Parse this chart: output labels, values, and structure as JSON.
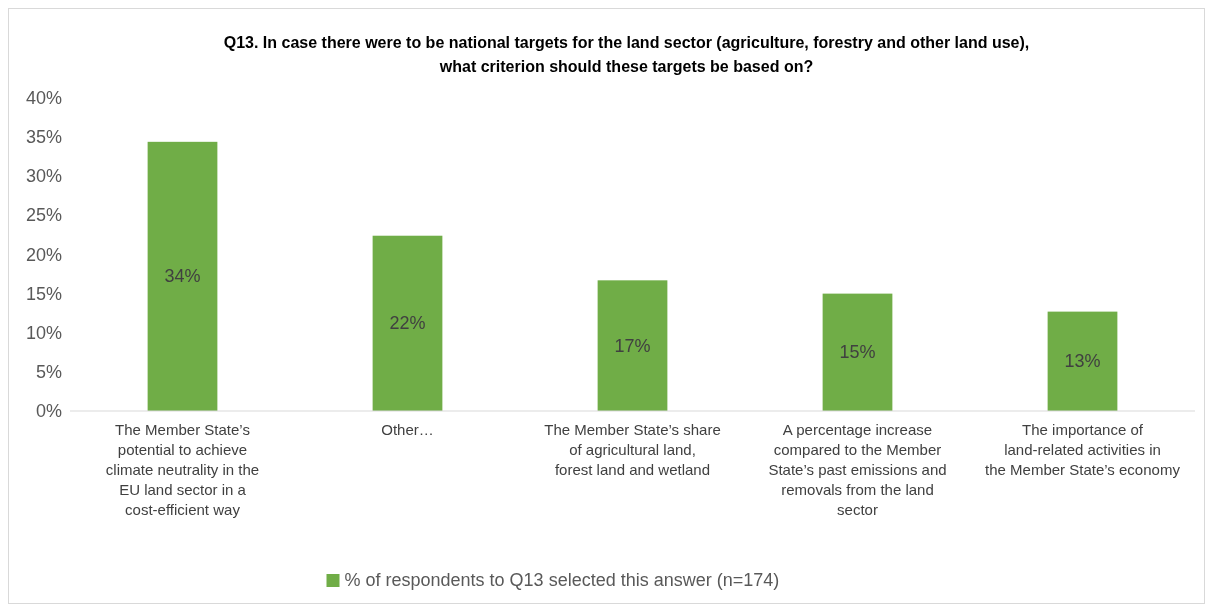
{
  "chart_data": {
    "type": "bar",
    "title": "Q13. In case there were to be national targets for the land sector (agriculture, forestry and other land use),\nwhat criterion should these targets be based on?",
    "categories": [
      "The Member State’s potential to achieve climate neutrality in the EU land sector in a cost-efficient way",
      "Other…",
      "The Member State’s share of agricultural land, forest land and wetland",
      "A percentage increase compared to the Member State’s past emissions and removals from the land sector",
      "The importance of land-related activities in the Member State’s economy"
    ],
    "series": [
      {
        "name": "% of respondents to Q13 selected this answer (n=174)",
        "color": "#70ad47",
        "values": [
          34.4,
          22.4,
          16.7,
          15,
          12.7
        ],
        "value_labels": [
          "34%",
          "22%",
          "17%",
          "15%",
          "13%"
        ]
      }
    ],
    "ylim": [
      0,
      40
    ],
    "yticks": [
      {
        "value": 0,
        "label": "0%"
      },
      {
        "value": 5,
        "label": "5%"
      },
      {
        "value": 10,
        "label": "10%"
      },
      {
        "value": 15,
        "label": "15%"
      },
      {
        "value": 20,
        "label": "20%"
      },
      {
        "value": 25,
        "label": "25%"
      },
      {
        "value": 30,
        "label": "30%"
      },
      {
        "value": 35,
        "label": "35%"
      },
      {
        "value": 40,
        "label": "40%"
      }
    ],
    "grid": false,
    "legend": "bottom"
  }
}
